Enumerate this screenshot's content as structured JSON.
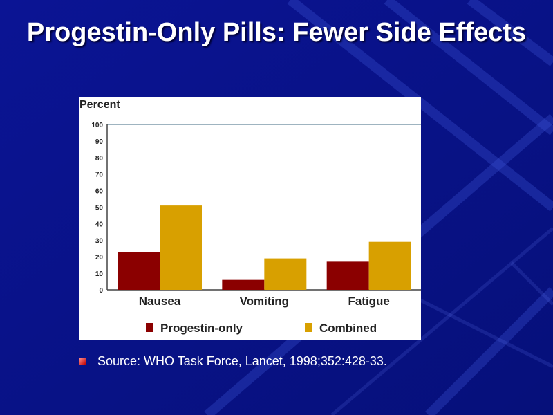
{
  "slide": {
    "title": "Progestin-Only Pills: Fewer Side Effects",
    "source": "Source: WHO Task Force, Lancet, 1998;352:428-33.",
    "background_color": "#0a1290",
    "bullet_icon": "square-bullet-icon"
  },
  "chart_data": {
    "type": "bar",
    "title": "",
    "ylabel": "Percent",
    "xlabel": "",
    "ylim": [
      0,
      100
    ],
    "yticks": [
      0,
      10,
      20,
      30,
      40,
      50,
      60,
      70,
      80,
      90,
      100
    ],
    "categories": [
      "Nausea",
      "Vomiting",
      "Fatigue"
    ],
    "series": [
      {
        "name": "Progestin-only",
        "color": "#8b0000",
        "values": [
          23,
          6,
          17
        ]
      },
      {
        "name": "Combined",
        "color": "#d8a000",
        "values": [
          51,
          19,
          29
        ]
      }
    ],
    "legend_position": "bottom"
  }
}
